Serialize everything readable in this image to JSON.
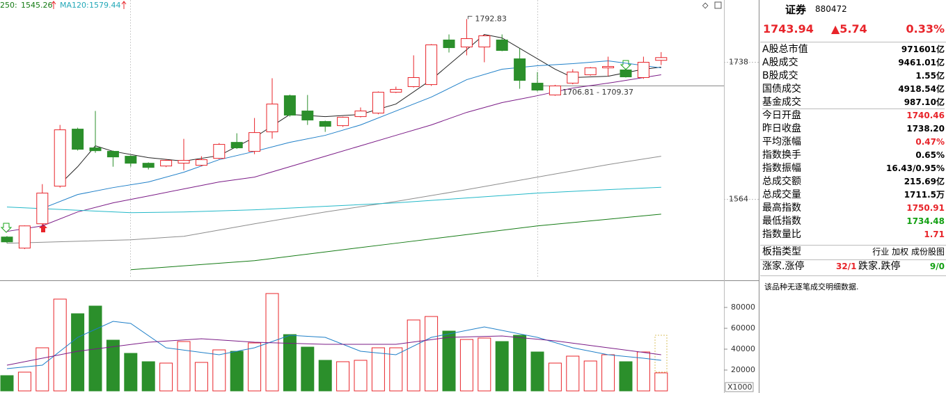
{
  "chart": {
    "type": "candlestick",
    "ylim": [
      1464,
      1817
    ],
    "yticks": [
      1738,
      1564
    ],
    "up_color": "#e8242a",
    "down_color": "#2b8f2b",
    "ohlc": [
      [
        1516.3,
        1510.1,
        1517.5,
        1508.5
      ],
      [
        1502.2,
        1530.4,
        1531,
        1501
      ],
      [
        1533.1,
        1572.0,
        1583.4,
        1531
      ],
      [
        1580.8,
        1652.3,
        1658.5,
        1579
      ],
      [
        1653.2,
        1627.6,
        1655,
        1626
      ],
      [
        1629.4,
        1625.8,
        1676.2,
        1623.2
      ],
      [
        1625.0,
        1617.9,
        1626,
        1605.5
      ],
      [
        1618.8,
        1609.9,
        1620,
        1605.5
      ],
      [
        1609.9,
        1604.6,
        1611,
        1602.0
      ],
      [
        1606.4,
        1613.5,
        1615,
        1605
      ],
      [
        1610,
        1613.5,
        1640.8,
        1601.1
      ],
      [
        1607.3,
        1614.4,
        1618.8,
        1606
      ],
      [
        1616.1,
        1633.8,
        1635.5,
        1615
      ],
      [
        1636.4,
        1629.4,
        1647.9,
        1628
      ],
      [
        1625.0,
        1648.8,
        1667.3,
        1621.4
      ],
      [
        1649.7,
        1685.0,
        1717.7,
        1641
      ],
      [
        1695.6,
        1670.9,
        1697,
        1669
      ],
      [
        1676.2,
        1664.7,
        1696.5,
        1658.5
      ],
      [
        1662.9,
        1656.7,
        1664,
        1649.7
      ],
      [
        1657.6,
        1668.2,
        1669,
        1656
      ],
      [
        1669.1,
        1676.2,
        1680.6,
        1668
      ],
      [
        1673.5,
        1700.0,
        1701,
        1672
      ],
      [
        1700.0,
        1703.6,
        1707.1,
        1699
      ],
      [
        1707.1,
        1718.6,
        1746.8,
        1706
      ],
      [
        1709.7,
        1760.1,
        1761,
        1708
      ],
      [
        1766.3,
        1756.5,
        1773.3,
        1750.4
      ],
      [
        1757.4,
        1768.0,
        1792.83,
        1746.8
      ],
      [
        1757.4,
        1771.6,
        1773,
        1738.0
      ],
      [
        1766.3,
        1753.0,
        1773.3,
        1752
      ],
      [
        1742.4,
        1715.0,
        1755.7,
        1704.4
      ],
      [
        1711.5,
        1702.7,
        1725.6,
        1701
      ],
      [
        1696.5,
        1708,
        1709.37,
        1695.5
      ],
      [
        1711.5,
        1725.6,
        1729.2,
        1710
      ],
      [
        1722.1,
        1730.9,
        1732,
        1721
      ],
      [
        1730.9,
        1732.7,
        1745.1,
        1720.3
      ],
      [
        1728.3,
        1719.5,
        1730,
        1718.6
      ],
      [
        1718.6,
        1738.0,
        1745.1,
        1717
      ],
      [
        1740.46,
        1743.94,
        1750.91,
        1734.48
      ]
    ],
    "ma": [
      {
        "color": "#222222",
        "x": [
          3,
          4,
          5,
          6,
          8,
          10,
          12,
          14,
          16,
          18,
          20,
          22,
          24,
          26,
          27,
          28,
          29,
          31,
          32,
          34,
          36,
          37
        ],
        "values": [
          1583.4,
          1605.5,
          1632.0,
          1625.0,
          1617.0,
          1612.6,
          1619.6,
          1642.6,
          1671.8,
          1669.1,
          1671.8,
          1685.0,
          1715.9,
          1753.9,
          1773.3,
          1768.9,
          1755.7,
          1729.2,
          1718.6,
          1720.3,
          1729.2,
          1731.8
        ]
      },
      {
        "color": "#1e7fc8",
        "x": [
          2,
          4,
          6,
          8,
          10,
          12,
          14,
          16,
          18,
          20,
          22,
          24,
          26,
          28,
          30,
          32,
          34,
          37
        ],
        "values": [
          1552.5,
          1570.2,
          1579.0,
          1586.1,
          1598.5,
          1614.4,
          1624.9,
          1636.4,
          1645.3,
          1658.5,
          1676.2,
          1693.8,
          1715.9,
          1729.2,
          1733.6,
          1736.2,
          1739.8,
          1730.9
        ]
      },
      {
        "color": "#7a1a86",
        "x": [
          0,
          2,
          4,
          6,
          8,
          10,
          12,
          14,
          16,
          18,
          20,
          22,
          24,
          26,
          28,
          30,
          32,
          34,
          37
        ],
        "values": [
          1523.4,
          1530.4,
          1548.1,
          1559.6,
          1568.4,
          1577.3,
          1586.1,
          1592.3,
          1605.5,
          1618.8,
          1632.0,
          1645.3,
          1658.5,
          1674.4,
          1686.8,
          1695.6,
          1705.3,
          1711.5,
          1722.1
        ]
      },
      {
        "color": "#8c8c8c",
        "x": [
          0,
          7,
          10,
          14,
          18,
          22,
          26,
          30,
          34,
          37
        ],
        "values": [
          1508.4,
          1512.8,
          1517.2,
          1533.1,
          1548.1,
          1561.4,
          1576.4,
          1592.3,
          1608.2,
          1618.8
        ]
      },
      {
        "color": "#22b8c8",
        "x": [
          0,
          7,
          10,
          14,
          18,
          22,
          26,
          30,
          34,
          37
        ],
        "values": [
          1554.3,
          1547.2,
          1548.1,
          1550.8,
          1555.2,
          1559.6,
          1565.8,
          1572.0,
          1576.4,
          1579.44
        ]
      },
      {
        "color": "#137a13",
        "x": [
          7,
          14,
          22,
          30,
          37
        ],
        "values": [
          1474.8,
          1486.3,
          1508.4,
          1530.4,
          1545.26
        ]
      }
    ],
    "legend": [
      {
        "label": "250:"
      },
      {
        "label": "MA120:"
      }
    ],
    "annotations": [
      "1706.81 - 1709.37"
    ],
    "volume": {
      "ylim": [
        0,
        104000
      ],
      "yticks": [
        80000,
        60000,
        40000,
        20000
      ],
      "unit_label": "X1000",
      "values": [
        14667,
        18000,
        41333,
        88000,
        74000,
        81333,
        48667,
        36000,
        28000,
        26667,
        47333,
        27333,
        39333,
        38000,
        46000,
        93333,
        54000,
        42000,
        29333,
        28000,
        29333,
        41333,
        41333,
        68000,
        71333,
        57333,
        49333,
        50667,
        47333,
        53333,
        37333,
        26667,
        33333,
        28667,
        34667,
        28000,
        37333,
        17333
      ],
      "ma": [
        {
          "color": "#1e7fc8",
          "x": [
            0,
            2,
            4,
            6,
            7,
            9,
            12,
            14,
            16,
            18,
            20,
            22,
            24,
            27,
            30,
            32,
            34,
            36,
            37
          ],
          "values": [
            21333,
            24667,
            51333,
            66667,
            64667,
            41333,
            34667,
            41333,
            53333,
            51333,
            38000,
            34667,
            51333,
            61333,
            51333,
            41333,
            34667,
            31333,
            29333
          ]
        },
        {
          "color": "#7a1a86",
          "x": [
            0,
            4,
            8,
            11,
            14,
            18,
            22,
            25,
            28,
            31,
            34,
            37
          ],
          "values": [
            24667,
            38000,
            46667,
            50000,
            46667,
            44667,
            44667,
            51333,
            52667,
            48000,
            41333,
            34667
          ]
        }
      ]
    }
  },
  "quote": {
    "name": "证券",
    "code": "880472",
    "price": 1743.94,
    "change": "▲5.74",
    "pct": "0.33%"
  },
  "stats": [
    {
      "label": "A股总市值",
      "value": "971601亿"
    },
    {
      "label": "A股成交",
      "value": "9461.01亿"
    },
    {
      "label": "B股成交",
      "value": "1.55亿"
    },
    {
      "label": "国债成交",
      "value": "4918.54亿"
    },
    {
      "label": "基金成交",
      "value": "987.10亿"
    },
    {
      "label": "今日开盘",
      "value": "1740.46",
      "color": "red"
    },
    {
      "label": "昨日收盘",
      "value": "1738.20"
    },
    {
      "label": "平均涨幅",
      "value": "0.47%",
      "color": "red"
    },
    {
      "label": "指数换手",
      "value": "0.65%"
    },
    {
      "label": "指数振幅",
      "value": "16.43/0.95%"
    },
    {
      "label": "总成交额",
      "value": "215.69亿"
    },
    {
      "label": "总成交量",
      "value": "1711.5万"
    },
    {
      "label": "最高指数",
      "value": "1750.91",
      "color": "red"
    },
    {
      "label": "最低指数",
      "value": "1734.48",
      "color": "green"
    },
    {
      "label": "指数量比",
      "value": "1.71",
      "color": "red"
    }
  ],
  "board": {
    "label": "板指类型",
    "options": [
      "行业",
      "加权",
      "成份股图"
    ]
  },
  "breadth": {
    "up_label": "涨家.涨停",
    "up_value": "32/1",
    "down_label": "跌家.跌停",
    "down_value": "9/0"
  },
  "note": "该品种无逐笔成交明细数据."
}
